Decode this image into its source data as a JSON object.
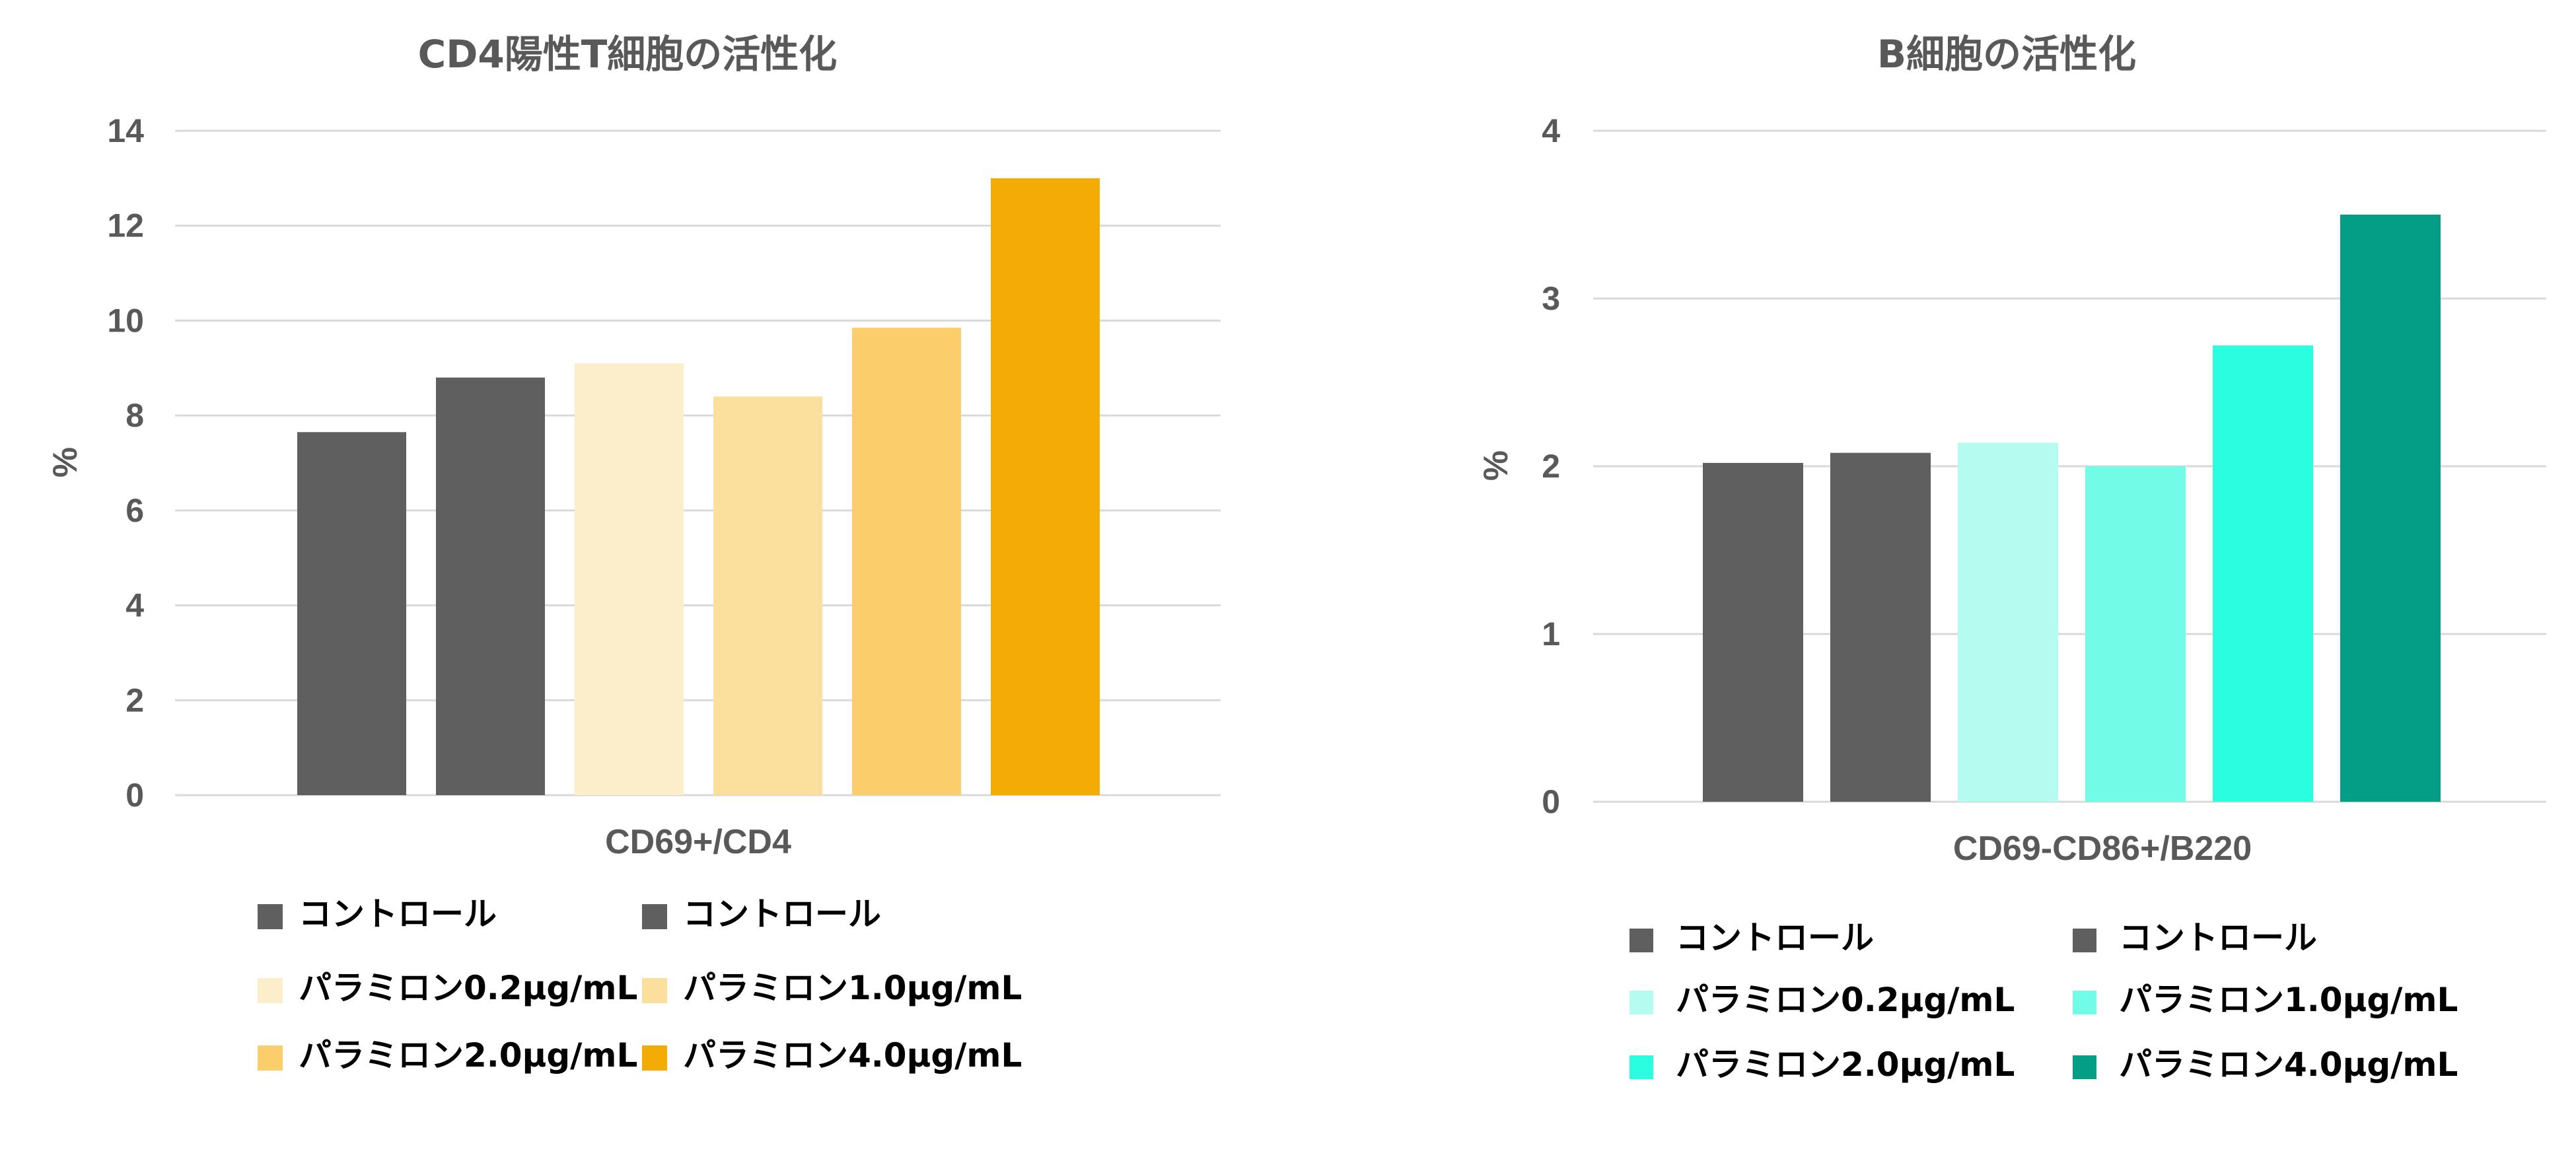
{
  "chart_data": [
    {
      "type": "bar",
      "title": "CD4陽性T細胞の活性化",
      "xlabel": "",
      "ylabel": "%",
      "categories": [
        "CD69+/CD4"
      ],
      "ylim": [
        0,
        14
      ],
      "yticks": [
        0,
        2,
        4,
        6,
        8,
        10,
        12,
        14
      ],
      "grid": true,
      "legend_position": "bottom",
      "series": [
        {
          "name": "コントロール",
          "values": [
            7.65
          ],
          "color": "#5f5f5f"
        },
        {
          "name": "コントロール",
          "values": [
            8.8
          ],
          "color": "#5f5f5f"
        },
        {
          "name": "パラミロン0.2μg/mL",
          "values": [
            9.1
          ],
          "color": "#fdeecb"
        },
        {
          "name": "パラミロン1.0μg/mL",
          "values": [
            8.4
          ],
          "color": "#fbdf9d"
        },
        {
          "name": "パラミロン2.0μg/mL",
          "values": [
            9.85
          ],
          "color": "#fbcd6b"
        },
        {
          "name": "パラミロン4.0μg/mL",
          "values": [
            13.0
          ],
          "color": "#f5ab05"
        }
      ]
    },
    {
      "type": "bar",
      "title": "B細胞の活性化",
      "xlabel": "",
      "ylabel": "%",
      "categories": [
        "CD69-CD86+/B220"
      ],
      "ylim": [
        0,
        4
      ],
      "yticks": [
        0,
        1,
        2,
        3,
        4
      ],
      "grid": true,
      "legend_position": "bottom",
      "series": [
        {
          "name": "コントロール",
          "values": [
            2.02
          ],
          "color": "#5f5f5f"
        },
        {
          "name": "コントロール",
          "values": [
            2.08
          ],
          "color": "#5f5f5f"
        },
        {
          "name": "パラミロン0.2μg/mL",
          "values": [
            2.14
          ],
          "color": "#b6fbef"
        },
        {
          "name": "パラミロン1.0μg/mL",
          "values": [
            2.0
          ],
          "color": "#72fbe6"
        },
        {
          "name": "パラミロン2.0μg/mL",
          "values": [
            2.72
          ],
          "color": "#2afde0"
        },
        {
          "name": "パラミロン4.0μg/mL",
          "values": [
            3.5
          ],
          "color": "#049e87"
        }
      ]
    }
  ]
}
